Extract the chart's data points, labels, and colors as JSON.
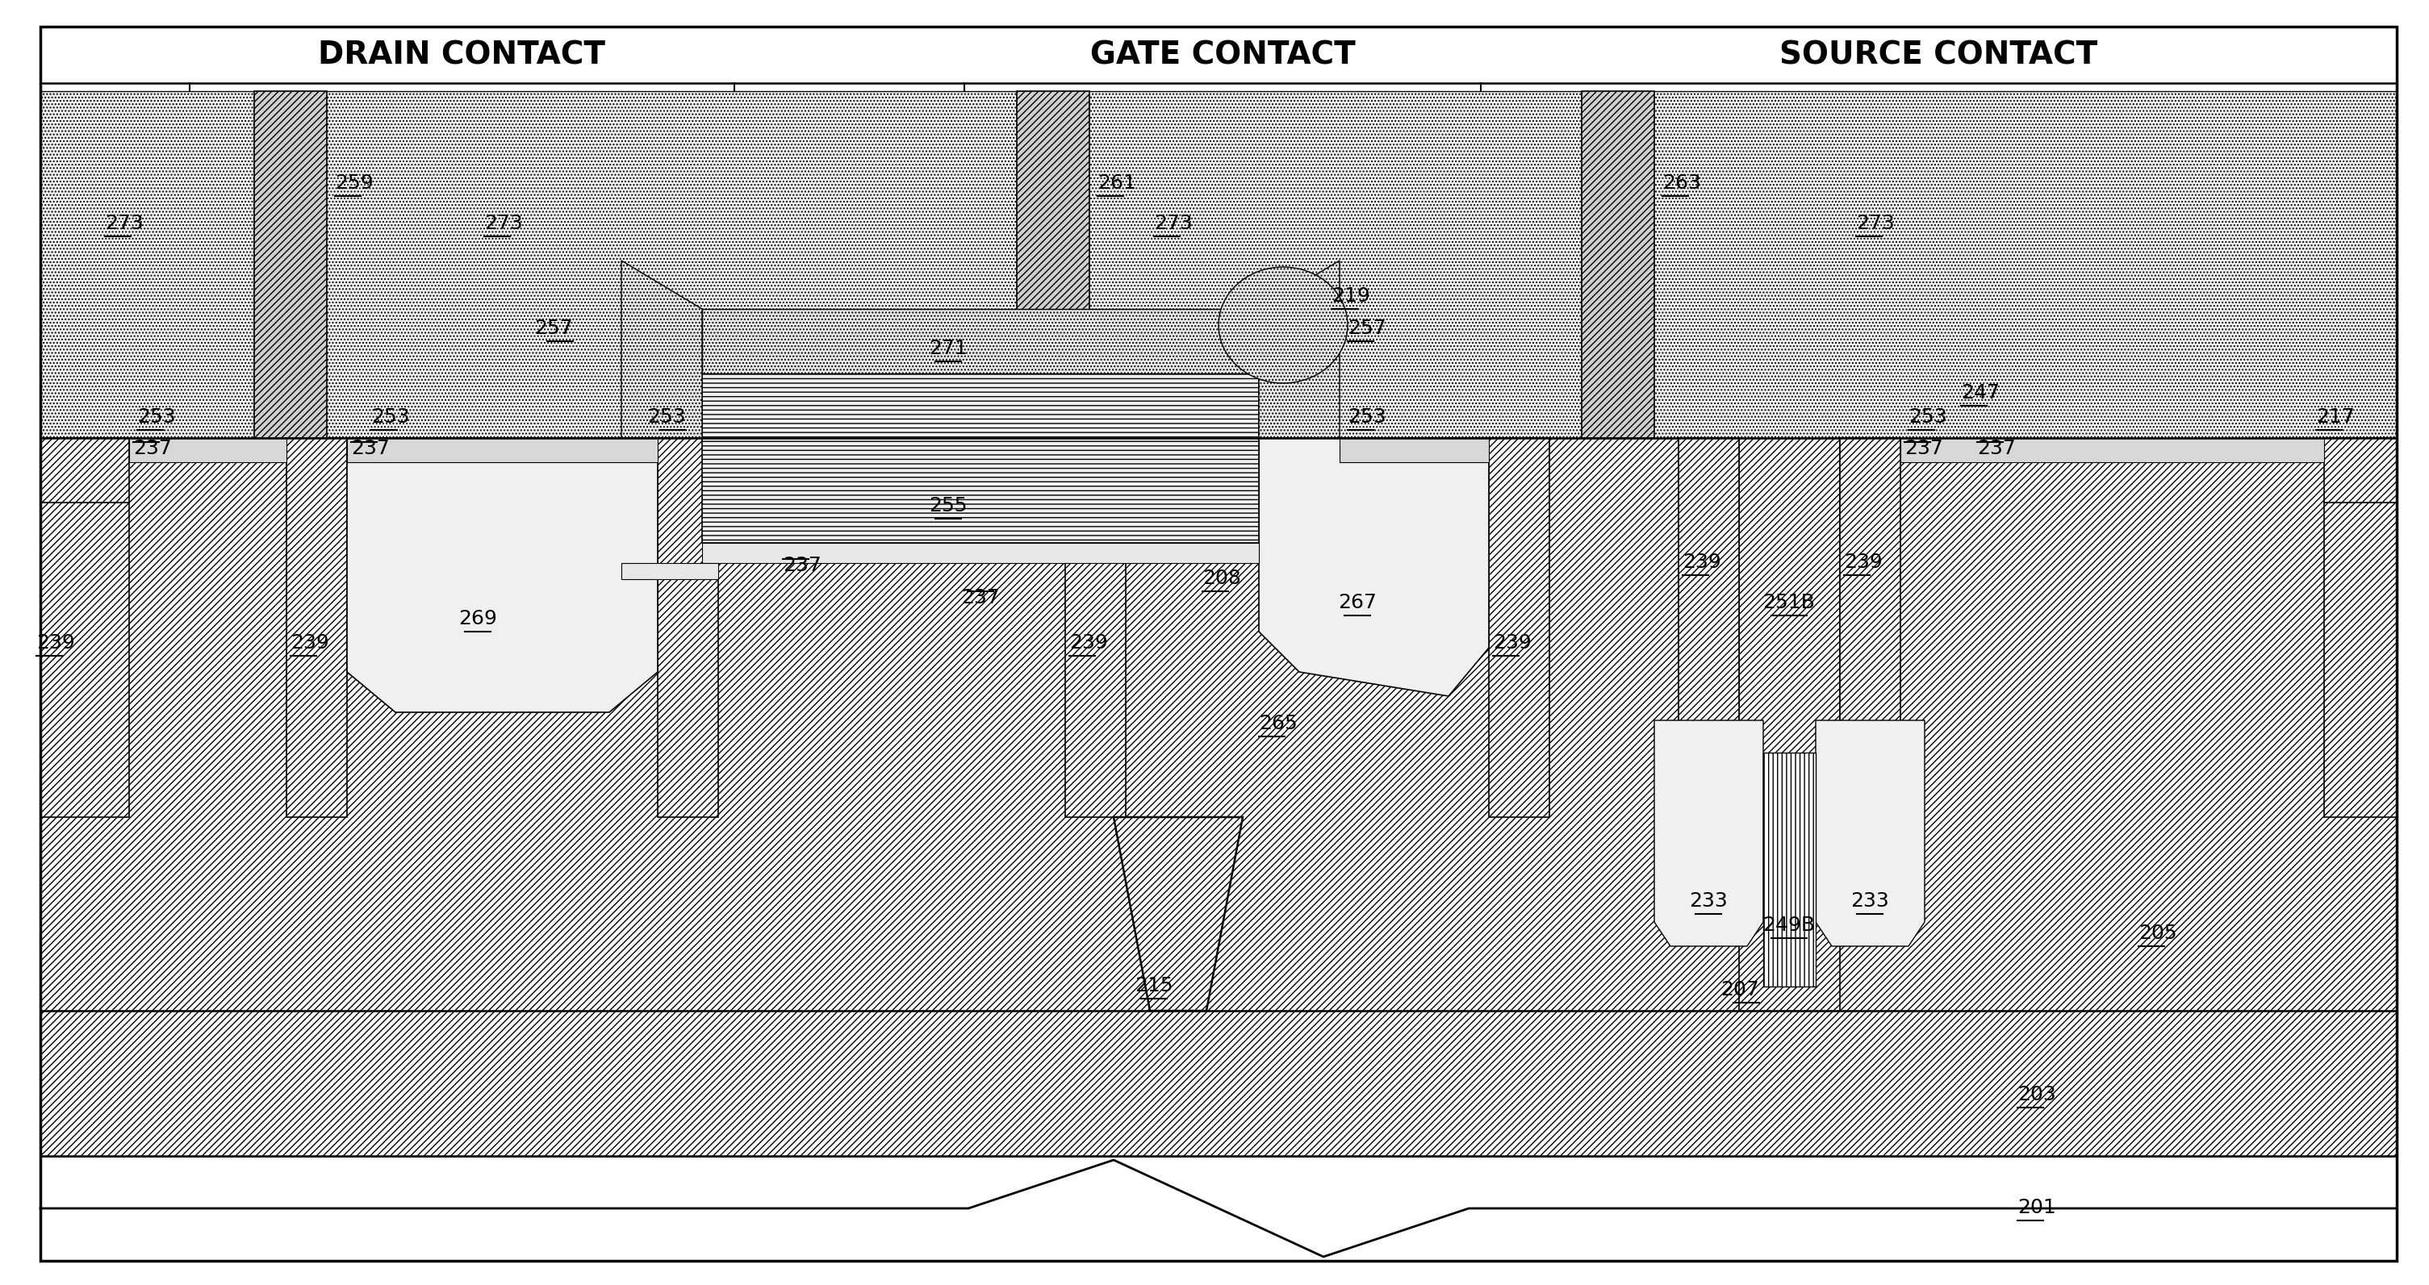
{
  "fig_width": 30.1,
  "fig_height": 15.93,
  "bg_color": "#ffffff",
  "labels": {
    "drain_contact": "DRAIN CONTACT",
    "gate_contact": "GATE CONTACT",
    "source_contact": "SOURCE CONTACT"
  }
}
